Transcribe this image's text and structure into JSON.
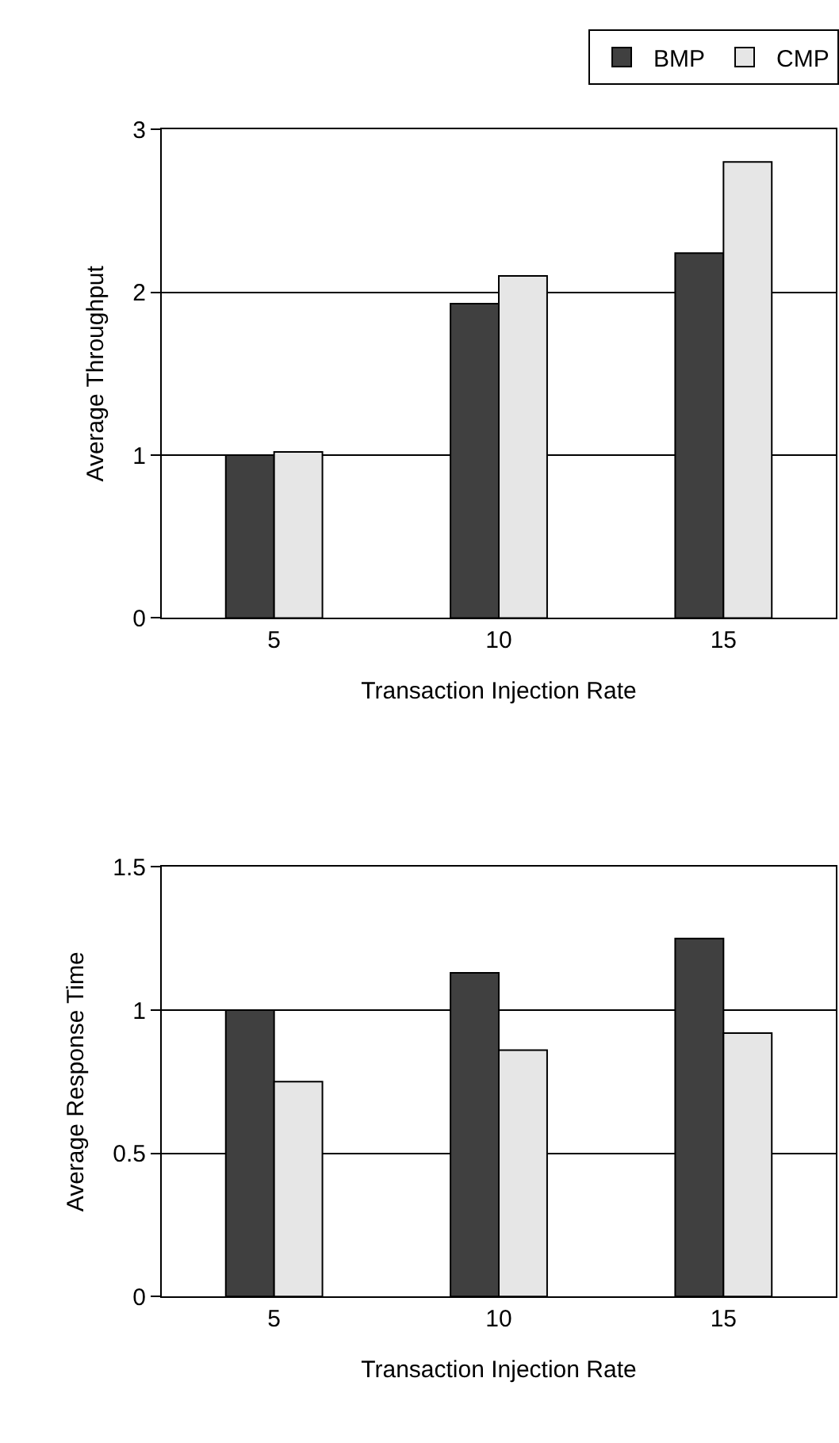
{
  "chart_data": [
    {
      "type": "bar",
      "xlabel": "Transaction Injection Rate",
      "ylabel": "Average Throughput",
      "categories": [
        "5",
        "10",
        "15"
      ],
      "series": [
        {
          "name": "BMP",
          "color": "#404040",
          "values": [
            1.0,
            1.93,
            2.24
          ]
        },
        {
          "name": "CMP",
          "color": "#e6e6e6",
          "values": [
            1.02,
            2.1,
            2.8
          ]
        }
      ],
      "ylim": [
        0,
        3
      ],
      "yticks": [
        0,
        1,
        2,
        3
      ],
      "grid": "y",
      "legend": "top right"
    },
    {
      "type": "bar",
      "xlabel": "Transaction Injection Rate",
      "ylabel": "Average Response Time",
      "categories": [
        "5",
        "10",
        "15"
      ],
      "series": [
        {
          "color": "#404040",
          "values": [
            1.0,
            1.13,
            1.25
          ]
        },
        {
          "color": "#e6e6e6",
          "values": [
            0.75,
            0.86,
            0.92
          ]
        }
      ],
      "ylim": [
        0,
        1.5
      ],
      "yticks": [
        0,
        0.5,
        1,
        1.5
      ],
      "grid": "y"
    }
  ]
}
